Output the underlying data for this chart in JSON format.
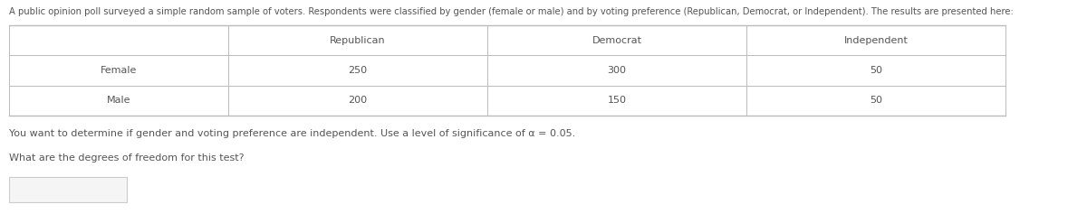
{
  "title_text": "A public opinion poll surveyed a simple random sample of voters. Respondents were classified by gender (female or male) and by voting preference (Republican, Democrat, or Independent). The results are presented here:",
  "table_headers": [
    "",
    "Republican",
    "Democrat",
    "Independent"
  ],
  "table_rows": [
    [
      "Female",
      "250",
      "300",
      "50"
    ],
    [
      "Male",
      "200",
      "150",
      "50"
    ]
  ],
  "body_text1": "You want to determine if gender and voting preference are independent. Use a level of significance of α = 0.05.",
  "body_text2": "What are the degrees of freedom for this test?",
  "bg_color": "#ffffff",
  "text_color": "#555555",
  "table_border_color": "#bbbbbb",
  "input_box_color": "#f5f5f5",
  "font_size_title": 7.2,
  "font_size_table": 8.0,
  "font_size_body": 8.0
}
